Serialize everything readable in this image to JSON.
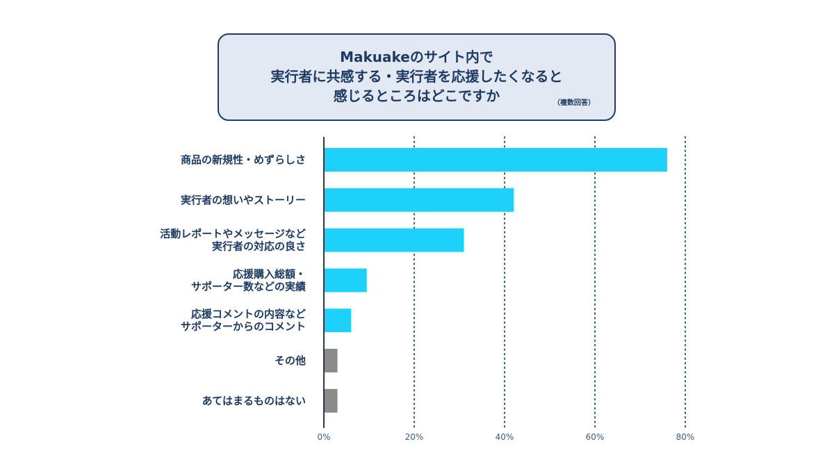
{
  "title": {
    "lines": [
      "Makuakeのサイト内で",
      "実行者に共感する・実行者を応援したくなると",
      "感じるところはどこですか"
    ],
    "note": "（複数回答）"
  },
  "colors": {
    "primary": "#1dd1fb",
    "other": "#8a8a8a",
    "text": "#1d3a63",
    "grid": "#2f5d8f"
  },
  "chart_data": {
    "type": "bar",
    "orientation": "horizontal",
    "categories": [
      [
        "商品の新規性・めずらしさ"
      ],
      [
        "実行者の想いやストーリー"
      ],
      [
        "活動レポートやメッセージなど",
        "実行者の対応の良さ"
      ],
      [
        "応援購入総額・",
        "サポーター数などの実績"
      ],
      [
        "応援コメントの内容など",
        "サポーターからのコメント"
      ],
      [
        "その他"
      ],
      [
        "あてはまるものはない"
      ]
    ],
    "values": [
      76,
      42,
      31,
      9.5,
      6,
      3,
      3
    ],
    "bar_color_keys": [
      "primary",
      "primary",
      "primary",
      "primary",
      "primary",
      "other",
      "other"
    ],
    "xlim": [
      0,
      80
    ],
    "xticks": [
      0,
      20,
      40,
      60,
      80
    ],
    "xtick_labels": [
      "0%",
      "20%",
      "40%",
      "60%",
      "80%"
    ],
    "grid": "vertical dotted"
  }
}
